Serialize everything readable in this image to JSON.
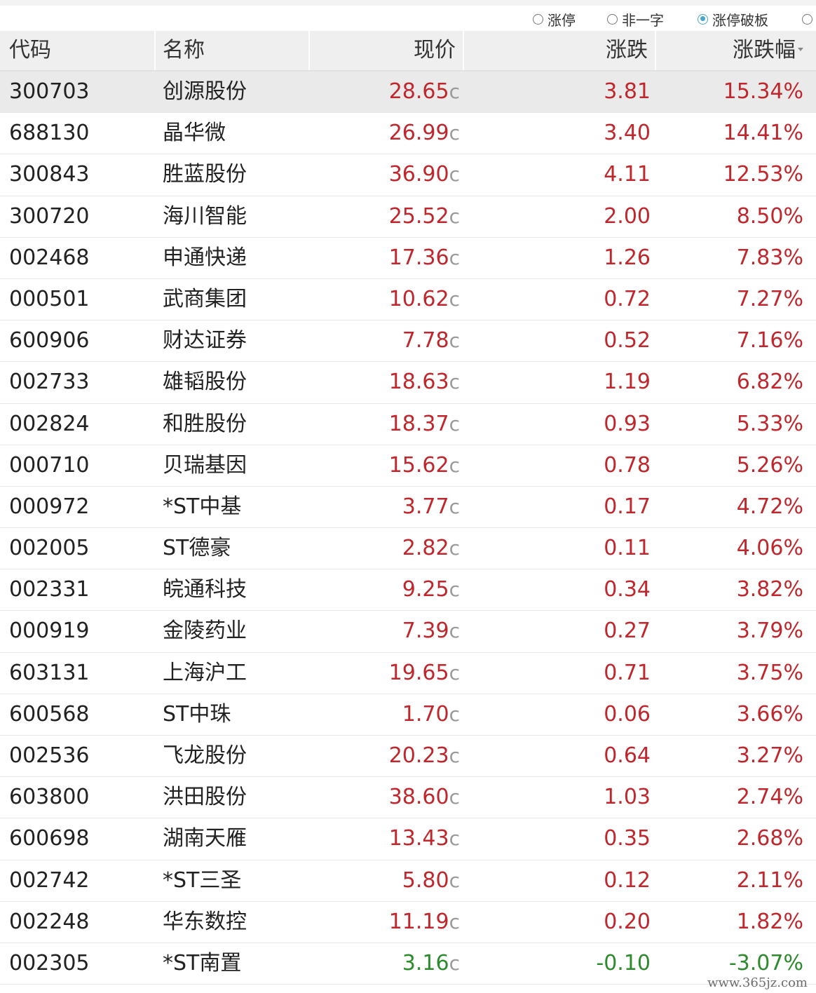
{
  "filters": [
    {
      "label": "涨停",
      "checked": false
    },
    {
      "label": "非一字",
      "checked": false
    },
    {
      "label": "涨停破板",
      "checked": true
    },
    {
      "label": "",
      "checked": false
    }
  ],
  "columns": {
    "code": "代码",
    "name": "名称",
    "price": "现价",
    "change": "涨跌",
    "pct": "涨跌幅"
  },
  "colors": {
    "up": "#c0272d",
    "down": "#2d8a2d",
    "selected_row": "#eaeaea",
    "radio_accent": "#4aa6c8"
  },
  "rows": [
    {
      "code": "300703",
      "name": "创源股份",
      "price": "28.65",
      "change": "3.81",
      "pct": "15.34%",
      "dir": "up",
      "marker": "c"
    },
    {
      "code": "688130",
      "name": "晶华微",
      "price": "26.99",
      "change": "3.40",
      "pct": "14.41%",
      "dir": "up",
      "marker": "c"
    },
    {
      "code": "300843",
      "name": "胜蓝股份",
      "price": "36.90",
      "change": "4.11",
      "pct": "12.53%",
      "dir": "up",
      "marker": "c"
    },
    {
      "code": "300720",
      "name": "海川智能",
      "price": "25.52",
      "change": "2.00",
      "pct": "8.50%",
      "dir": "up",
      "marker": "c"
    },
    {
      "code": "002468",
      "name": "申通快递",
      "price": "17.36",
      "change": "1.26",
      "pct": "7.83%",
      "dir": "up",
      "marker": "c"
    },
    {
      "code": "000501",
      "name": "武商集团",
      "price": "10.62",
      "change": "0.72",
      "pct": "7.27%",
      "dir": "up",
      "marker": "c"
    },
    {
      "code": "600906",
      "name": "财达证券",
      "price": "7.78",
      "change": "0.52",
      "pct": "7.16%",
      "dir": "up",
      "marker": "c"
    },
    {
      "code": "002733",
      "name": "雄韬股份",
      "price": "18.63",
      "change": "1.19",
      "pct": "6.82%",
      "dir": "up",
      "marker": "c"
    },
    {
      "code": "002824",
      "name": "和胜股份",
      "price": "18.37",
      "change": "0.93",
      "pct": "5.33%",
      "dir": "up",
      "marker": "c"
    },
    {
      "code": "000710",
      "name": "贝瑞基因",
      "price": "15.62",
      "change": "0.78",
      "pct": "5.26%",
      "dir": "up",
      "marker": "c"
    },
    {
      "code": "000972",
      "name": "*ST中基",
      "price": "3.77",
      "change": "0.17",
      "pct": "4.72%",
      "dir": "up",
      "marker": "c"
    },
    {
      "code": "002005",
      "name": "ST德豪",
      "price": "2.82",
      "change": "0.11",
      "pct": "4.06%",
      "dir": "up",
      "marker": "c"
    },
    {
      "code": "002331",
      "name": "皖通科技",
      "price": "9.25",
      "change": "0.34",
      "pct": "3.82%",
      "dir": "up",
      "marker": "c"
    },
    {
      "code": "000919",
      "name": "金陵药业",
      "price": "7.39",
      "change": "0.27",
      "pct": "3.79%",
      "dir": "up",
      "marker": "c"
    },
    {
      "code": "603131",
      "name": "上海沪工",
      "price": "19.65",
      "change": "0.71",
      "pct": "3.75%",
      "dir": "up",
      "marker": "c"
    },
    {
      "code": "600568",
      "name": "ST中珠",
      "price": "1.70",
      "change": "0.06",
      "pct": "3.66%",
      "dir": "up",
      "marker": "c"
    },
    {
      "code": "002536",
      "name": "飞龙股份",
      "price": "20.23",
      "change": "0.64",
      "pct": "3.27%",
      "dir": "up",
      "marker": "c"
    },
    {
      "code": "603800",
      "name": "洪田股份",
      "price": "38.60",
      "change": "1.03",
      "pct": "2.74%",
      "dir": "up",
      "marker": "c"
    },
    {
      "code": "600698",
      "name": "湖南天雁",
      "price": "13.43",
      "change": "0.35",
      "pct": "2.68%",
      "dir": "up",
      "marker": "c"
    },
    {
      "code": "002742",
      "name": "*ST三圣",
      "price": "5.80",
      "change": "0.12",
      "pct": "2.11%",
      "dir": "up",
      "marker": "c"
    },
    {
      "code": "002248",
      "name": "华东数控",
      "price": "11.19",
      "change": "0.20",
      "pct": "1.82%",
      "dir": "up",
      "marker": "c"
    },
    {
      "code": "002305",
      "name": "*ST南置",
      "price": "3.16",
      "change": "-0.10",
      "pct": "-3.07%",
      "dir": "down",
      "marker": "c"
    }
  ],
  "watermark": "www.365jz.com"
}
